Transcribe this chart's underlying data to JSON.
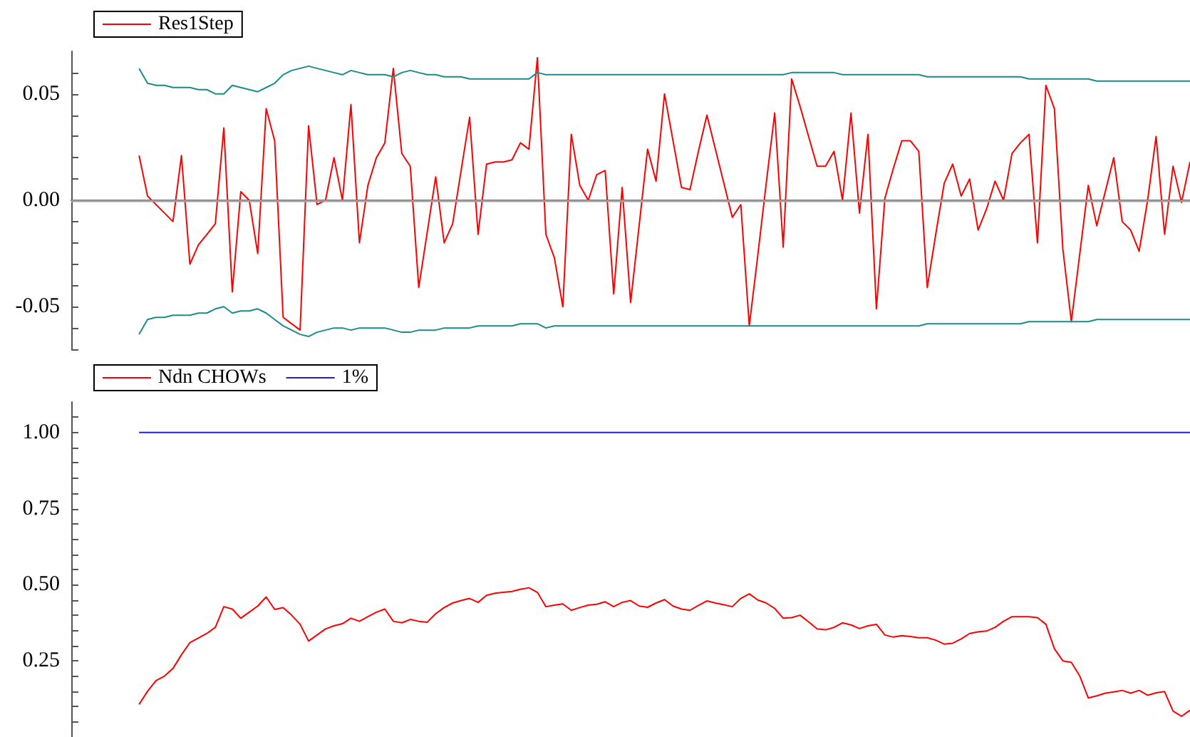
{
  "chart_data": [
    {
      "type": "line",
      "categories": [
        null,
        null,
        null,
        null,
        null,
        null,
        null,
        null,
        null,
        null,
        null,
        null,
        null,
        null,
        null,
        null,
        null,
        null,
        null,
        null,
        null,
        null,
        null,
        null,
        null,
        null,
        null,
        null,
        null,
        null,
        null,
        null,
        null,
        null,
        null,
        null,
        null,
        null,
        null,
        null,
        null,
        null,
        null,
        null,
        null,
        null,
        null,
        null,
        null,
        null,
        null,
        null,
        null,
        null,
        null,
        null,
        null,
        null,
        null,
        null,
        null,
        null,
        null,
        null,
        null,
        null,
        null,
        null,
        null,
        null,
        null,
        null,
        null,
        null,
        null,
        null,
        null,
        null,
        null,
        null,
        null,
        null,
        null,
        null,
        null,
        null,
        null,
        null,
        null,
        null,
        null,
        null,
        null,
        null,
        null,
        null,
        null,
        null,
        null,
        null,
        null,
        null,
        null,
        null,
        null,
        null,
        null,
        null,
        null,
        null,
        null,
        null,
        null,
        null,
        null,
        null,
        null,
        null,
        null,
        null,
        null,
        null,
        null,
        null,
        null,
        null,
        null,
        null,
        null,
        null,
        null,
        null,
        null
      ],
      "series": [
        {
          "name": "Res1Step",
          "color": "#ff0000",
          "values": [
            null,
            null,
            null,
            null,
            null,
            null,
            null,
            null,
            0.021,
            0.002,
            -0.002,
            -0.006,
            -0.01,
            0.021,
            -0.03,
            -0.021,
            -0.016,
            -0.011,
            0.034,
            -0.043,
            0.004,
            0.0,
            -0.025,
            0.043,
            0.028,
            -0.055,
            -0.058,
            -0.061,
            0.035,
            -0.002,
            0.0,
            0.02,
            0.0,
            0.045,
            -0.02,
            0.007,
            0.02,
            0.027,
            0.062,
            0.022,
            0.016,
            -0.041,
            -0.015,
            0.011,
            -0.02,
            -0.011,
            0.014,
            0.039,
            -0.016,
            0.017,
            0.018,
            0.018,
            0.019,
            0.027,
            0.024,
            0.067,
            -0.016,
            -0.027,
            -0.05,
            0.031,
            0.007,
            0.0,
            0.012,
            0.014,
            -0.044,
            0.006,
            -0.048,
            -0.012,
            0.024,
            0.009,
            0.05,
            0.028,
            0.006,
            0.005,
            0.023,
            0.04,
            0.024,
            0.008,
            -0.008,
            -0.002,
            -0.059,
            -0.026,
            0.008,
            0.041,
            -0.022,
            0.057,
            0.044,
            0.03,
            0.016,
            0.016,
            0.023,
            0.0,
            0.041,
            -0.006,
            0.031,
            -0.051,
            0.001,
            0.015,
            0.028,
            0.028,
            0.023,
            -0.041,
            -0.016,
            0.008,
            0.017,
            0.002,
            0.01,
            -0.014,
            -0.004,
            0.009,
            0.0,
            0.022,
            0.027,
            0.031,
            -0.02,
            0.054,
            0.043,
            -0.023,
            -0.057,
            -0.025,
            0.007,
            -0.012,
            0.004,
            0.02,
            -0.01,
            -0.014,
            -0.024,
            0.0,
            0.03,
            -0.016,
            0.016,
            -0.001,
            0.018
          ]
        },
        {
          "color": "#1a8c8c",
          "values": [
            null,
            null,
            null,
            null,
            null,
            null,
            null,
            null,
            0.062,
            0.055,
            0.054,
            0.054,
            0.053,
            0.053,
            0.053,
            0.052,
            0.052,
            0.05,
            0.05,
            0.054,
            0.053,
            0.052,
            0.051,
            0.053,
            0.055,
            0.059,
            0.061,
            0.062,
            0.063,
            0.062,
            0.061,
            0.06,
            0.059,
            0.061,
            0.06,
            0.059,
            0.059,
            0.059,
            0.058,
            0.06,
            0.061,
            0.06,
            0.059,
            0.059,
            0.058,
            0.058,
            0.058,
            0.057,
            0.057,
            0.057,
            0.057,
            0.057,
            0.057,
            0.057,
            0.057,
            0.06,
            0.059,
            0.059,
            0.059,
            0.059,
            0.059,
            0.059,
            0.059,
            0.059,
            0.059,
            0.059,
            0.059,
            0.059,
            0.059,
            0.059,
            0.059,
            0.059,
            0.059,
            0.059,
            0.059,
            0.059,
            0.059,
            0.059,
            0.059,
            0.059,
            0.059,
            0.059,
            0.059,
            0.059,
            0.059,
            0.06,
            0.06,
            0.06,
            0.06,
            0.06,
            0.06,
            0.059,
            0.059,
            0.059,
            0.059,
            0.059,
            0.059,
            0.059,
            0.059,
            0.059,
            0.059,
            0.058,
            0.058,
            0.058,
            0.058,
            0.058,
            0.058,
            0.058,
            0.058,
            0.058,
            0.058,
            0.058,
            0.058,
            0.057,
            0.057,
            0.057,
            0.057,
            0.057,
            0.057,
            0.057,
            0.057,
            0.056,
            0.056,
            0.056,
            0.056,
            0.056,
            0.056,
            0.056,
            0.056,
            0.056,
            0.056,
            0.056,
            0.056
          ]
        },
        {
          "color": "#1a8c8c",
          "values": [
            null,
            null,
            null,
            null,
            null,
            null,
            null,
            null,
            -0.063,
            -0.056,
            -0.055,
            -0.055,
            -0.054,
            -0.054,
            -0.054,
            -0.053,
            -0.053,
            -0.051,
            -0.05,
            -0.053,
            -0.052,
            -0.052,
            -0.051,
            -0.053,
            -0.056,
            -0.059,
            -0.061,
            -0.063,
            -0.064,
            -0.062,
            -0.061,
            -0.06,
            -0.06,
            -0.061,
            -0.06,
            -0.06,
            -0.06,
            -0.06,
            -0.061,
            -0.062,
            -0.062,
            -0.061,
            -0.061,
            -0.061,
            -0.06,
            -0.06,
            -0.06,
            -0.06,
            -0.059,
            -0.059,
            -0.059,
            -0.059,
            -0.059,
            -0.058,
            -0.058,
            -0.058,
            -0.06,
            -0.059,
            -0.059,
            -0.059,
            -0.059,
            -0.059,
            -0.059,
            -0.059,
            -0.059,
            -0.059,
            -0.059,
            -0.059,
            -0.059,
            -0.059,
            -0.059,
            -0.059,
            -0.059,
            -0.059,
            -0.059,
            -0.059,
            -0.059,
            -0.059,
            -0.059,
            -0.059,
            -0.059,
            -0.059,
            -0.059,
            -0.059,
            -0.059,
            -0.059,
            -0.059,
            -0.059,
            -0.059,
            -0.059,
            -0.059,
            -0.059,
            -0.059,
            -0.059,
            -0.059,
            -0.059,
            -0.059,
            -0.059,
            -0.059,
            -0.059,
            -0.059,
            -0.058,
            -0.058,
            -0.058,
            -0.058,
            -0.058,
            -0.058,
            -0.058,
            -0.058,
            -0.058,
            -0.058,
            -0.058,
            -0.058,
            -0.057,
            -0.057,
            -0.057,
            -0.057,
            -0.057,
            -0.057,
            -0.057,
            -0.057,
            -0.056,
            -0.056,
            -0.056,
            -0.056,
            -0.056,
            -0.056,
            -0.056,
            -0.056,
            -0.056,
            -0.056,
            -0.056,
            -0.056
          ]
        }
      ],
      "ylim": [
        -0.07,
        0.07
      ],
      "yticks": [
        {
          "value": -0.07,
          "label": null
        },
        {
          "value": -0.06,
          "label": null
        },
        {
          "value": -0.05,
          "label": "-0.05"
        },
        {
          "value": -0.04,
          "label": null
        },
        {
          "value": -0.03,
          "label": null
        },
        {
          "value": -0.02,
          "label": null
        },
        {
          "value": -0.01,
          "label": null
        },
        {
          "value": 0,
          "label": "0.00"
        },
        {
          "value": 0.01,
          "label": null
        },
        {
          "value": 0.02,
          "label": null
        },
        {
          "value": 0.03,
          "label": null
        },
        {
          "value": 0.04,
          "label": null
        },
        {
          "value": 0.05,
          "label": "0.05"
        },
        {
          "value": 0.06,
          "label": null
        }
      ],
      "ref_lines": [
        {
          "axis": "y",
          "value": 0,
          "color": "#a0a0a0"
        }
      ],
      "tick_labels": "y",
      "legend": "top left",
      "line_style": "solid"
    },
    {
      "type": "line",
      "categories": [
        null,
        null,
        null,
        null,
        null,
        null,
        null,
        null,
        null,
        null,
        null,
        null,
        null,
        null,
        null,
        null,
        null,
        null,
        null,
        null,
        null,
        null,
        null,
        null,
        null,
        null,
        null,
        null,
        null,
        null,
        null,
        null,
        null,
        null,
        null,
        null,
        null,
        null,
        null,
        null,
        null,
        null,
        null,
        null,
        null,
        null,
        null,
        null,
        null,
        null,
        null,
        null,
        null,
        null,
        null,
        null,
        null,
        null,
        null,
        null,
        null,
        null,
        null,
        null,
        null,
        null,
        null,
        null,
        null,
        null,
        null,
        null,
        null,
        null,
        null,
        null,
        null,
        null,
        null,
        null,
        null,
        null,
        null,
        null,
        null,
        null,
        null,
        null,
        null,
        null,
        null,
        null,
        null,
        null,
        null,
        null,
        null,
        null,
        null,
        null,
        null,
        null,
        null,
        null,
        null,
        null,
        null,
        null,
        null,
        null,
        null,
        null,
        null,
        null,
        null,
        null,
        null,
        null,
        null,
        null,
        null,
        null,
        null,
        null,
        null,
        null,
        null,
        null,
        null,
        null,
        null,
        null,
        null
      ],
      "series": [
        {
          "name": "Ndn CHOWs",
          "color": "#ff0000",
          "values": [
            null,
            null,
            null,
            null,
            null,
            null,
            null,
            null,
            0.107,
            0.15,
            0.185,
            0.2,
            0.225,
            0.27,
            0.31,
            0.325,
            0.34,
            0.36,
            0.428,
            0.42,
            0.39,
            0.41,
            0.43,
            0.46,
            0.419,
            0.425,
            0.4,
            0.37,
            0.315,
            0.335,
            0.355,
            0.365,
            0.372,
            0.39,
            0.38,
            0.395,
            0.41,
            0.42,
            0.38,
            0.375,
            0.386,
            0.38,
            0.377,
            0.405,
            0.425,
            0.44,
            0.448,
            0.455,
            0.442,
            0.465,
            0.472,
            0.475,
            0.478,
            0.485,
            0.49,
            0.475,
            0.428,
            0.433,
            0.437,
            0.416,
            0.425,
            0.433,
            0.436,
            0.444,
            0.428,
            0.442,
            0.448,
            0.43,
            0.426,
            0.44,
            0.451,
            0.43,
            0.42,
            0.416,
            0.432,
            0.447,
            0.44,
            0.434,
            0.428,
            0.455,
            0.47,
            0.45,
            0.44,
            0.422,
            0.39,
            0.392,
            0.4,
            0.378,
            0.355,
            0.352,
            0.36,
            0.375,
            0.368,
            0.356,
            0.365,
            0.37,
            0.335,
            0.328,
            0.333,
            0.33,
            0.326,
            0.326,
            0.318,
            0.305,
            0.308,
            0.322,
            0.34,
            0.345,
            0.348,
            0.36,
            0.38,
            0.395,
            0.395,
            0.395,
            0.392,
            0.37,
            0.29,
            0.25,
            0.245,
            0.2,
            0.128,
            0.135,
            0.144,
            0.148,
            0.153,
            0.144,
            0.153,
            0.137,
            0.145,
            0.149,
            0.085,
            0.068,
            0.088
          ]
        },
        {
          "name": "1%",
          "color": "#2020d0",
          "values": [
            null,
            null,
            null,
            null,
            null,
            null,
            null,
            null,
            1,
            1,
            1,
            1,
            1,
            1,
            1,
            1,
            1,
            1,
            1,
            1,
            1,
            1,
            1,
            1,
            1,
            1,
            1,
            1,
            1,
            1,
            1,
            1,
            1,
            1,
            1,
            1,
            1,
            1,
            1,
            1,
            1,
            1,
            1,
            1,
            1,
            1,
            1,
            1,
            1,
            1,
            1,
            1,
            1,
            1,
            1,
            1,
            1,
            1,
            1,
            1,
            1,
            1,
            1,
            1,
            1,
            1,
            1,
            1,
            1,
            1,
            1,
            1,
            1,
            1,
            1,
            1,
            1,
            1,
            1,
            1,
            1,
            1,
            1,
            1,
            1,
            1,
            1,
            1,
            1,
            1,
            1,
            1,
            1,
            1,
            1,
            1,
            1,
            1,
            1,
            1,
            1,
            1,
            1,
            1,
            1,
            1,
            1,
            1,
            1,
            1,
            1,
            1,
            1,
            1,
            1,
            1,
            1,
            1,
            1,
            1,
            1,
            1,
            1,
            1,
            1,
            1,
            1,
            1,
            1,
            1,
            1,
            1,
            1
          ]
        }
      ],
      "ylim": [
        0,
        1.1
      ],
      "yticks": [
        {
          "value": 0.05,
          "label": null
        },
        {
          "value": 0.1,
          "label": null
        },
        {
          "value": 0.15,
          "label": null
        },
        {
          "value": 0.2,
          "label": null
        },
        {
          "value": 0.25,
          "label": "0.25"
        },
        {
          "value": 0.3,
          "label": null
        },
        {
          "value": 0.35,
          "label": null
        },
        {
          "value": 0.4,
          "label": null
        },
        {
          "value": 0.45,
          "label": null
        },
        {
          "value": 0.5,
          "label": "0.50"
        },
        {
          "value": 0.55,
          "label": null
        },
        {
          "value": 0.6,
          "label": null
        },
        {
          "value": 0.65,
          "label": null
        },
        {
          "value": 0.7,
          "label": null
        },
        {
          "value": 0.75,
          "label": "0.75"
        },
        {
          "value": 0.8,
          "label": null
        },
        {
          "value": 0.85,
          "label": null
        },
        {
          "value": 0.9,
          "label": null
        },
        {
          "value": 0.95,
          "label": null
        },
        {
          "value": 1,
          "label": "1.00"
        },
        {
          "value": 1.05,
          "label": null
        }
      ],
      "tick_labels": "y",
      "legend": "top left",
      "line_style": "solid"
    }
  ]
}
